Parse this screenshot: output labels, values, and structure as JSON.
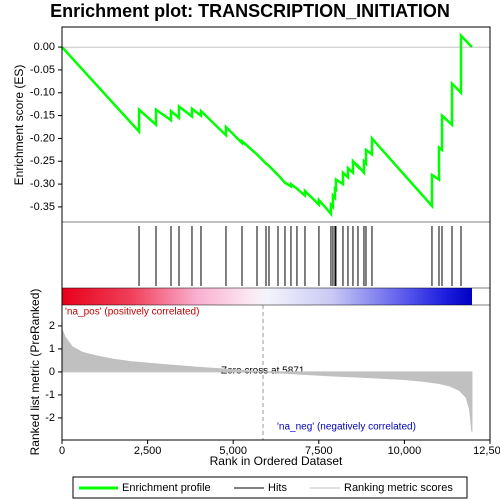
{
  "chart_data": [
    {
      "type": "line",
      "title": "Enrichment plot: TRANSCRIPTION_INITIATION",
      "ylabel": "Enrichment score (ES)",
      "x": [
        0,
        2250,
        2250,
        2745,
        2745,
        3183,
        3183,
        3417,
        3417,
        3796,
        3796,
        4059,
        4059,
        4789,
        4789,
        5257,
        5257,
        5695,
        5958,
        6045,
        6308,
        6512,
        6687,
        6687,
        6862,
        7096,
        7096,
        7504,
        7504,
        7855,
        7855,
        7913,
        7913,
        7972,
        7972,
        8001,
        8001,
        8206,
        8206,
        8352,
        8352,
        8498,
        8498,
        8644,
        8644,
        8819,
        8819,
        8878,
        8878,
        9053,
        9053,
        10805,
        10805,
        11010,
        11010,
        11098,
        11098,
        11390,
        11390,
        11653,
        11653,
        11972
      ],
      "series": [
        {
          "name": "Enrichment profile",
          "color": "#00ff00",
          "values": [
            0,
            -0.185,
            -0.137,
            -0.17,
            -0.137,
            -0.16,
            -0.14,
            -0.155,
            -0.13,
            -0.152,
            -0.135,
            -0.15,
            -0.14,
            -0.193,
            -0.175,
            -0.21,
            -0.206,
            -0.235,
            -0.255,
            -0.26,
            -0.28,
            -0.297,
            -0.305,
            -0.3,
            -0.31,
            -0.325,
            -0.315,
            -0.345,
            -0.335,
            -0.365,
            -0.345,
            -0.35,
            -0.325,
            -0.33,
            -0.31,
            -0.312,
            -0.29,
            -0.3,
            -0.275,
            -0.285,
            -0.265,
            -0.275,
            -0.25,
            -0.262,
            -0.26,
            -0.275,
            -0.25,
            -0.255,
            -0.225,
            -0.235,
            -0.2,
            -0.348,
            -0.28,
            -0.29,
            -0.22,
            -0.225,
            -0.15,
            -0.17,
            -0.08,
            -0.1,
            0.025,
            0.0
          ]
        }
      ],
      "xlim": [
        0,
        12500
      ],
      "ylim": [
        -0.383,
        0.044
      ],
      "yticks": [
        {
          "value": 0,
          "label": "0.00"
        },
        {
          "value": -0.05,
          "label": "-0.05"
        },
        {
          "value": -0.1,
          "label": "-0.10"
        },
        {
          "value": -0.15,
          "label": "-0.15"
        },
        {
          "value": -0.2,
          "label": "-0.20"
        },
        {
          "value": -0.25,
          "label": "-0.25"
        },
        {
          "value": -0.3,
          "label": "-0.30"
        },
        {
          "value": -0.35,
          "label": "-0.35"
        }
      ],
      "grid": false
    },
    {
      "type": "rug",
      "name": "Hits",
      "color": "#000000",
      "xlim": [
        0,
        12500
      ],
      "x": [
        2250,
        2745,
        3183,
        3417,
        3796,
        4059,
        4789,
        5257,
        5695,
        5958,
        6045,
        6308,
        6512,
        6687,
        6862,
        7096,
        7504,
        7855,
        7913,
        7972,
        8001,
        8206,
        8352,
        8498,
        8644,
        8819,
        8878,
        9053,
        10805,
        11010,
        11098,
        11390,
        11653
      ]
    },
    {
      "type": "area",
      "name": "Ranking metric scores",
      "color": "#c0c0c0",
      "ylabel": "Ranked list metric (PreRanked)",
      "xlabel": "Rank in Ordered Dataset",
      "x": [
        0,
        100,
        300,
        600,
        1000,
        1500,
        2000,
        3000,
        4000,
        5000,
        5871,
        7000,
        8000,
        9000,
        10000,
        10500,
        11000,
        11300,
        11600,
        11800,
        11900,
        11972
      ],
      "values": [
        1.85,
        1.5,
        1.1,
        0.85,
        0.7,
        0.55,
        0.45,
        0.32,
        0.2,
        0.1,
        0,
        -0.1,
        -0.18,
        -0.25,
        -0.33,
        -0.4,
        -0.5,
        -0.6,
        -0.8,
        -1.1,
        -1.6,
        -2.6
      ],
      "xlim": [
        0,
        12500
      ],
      "ylim": [
        -2.96,
        2.91
      ],
      "xticks": [
        0,
        {
          "value": 2500,
          "label": "2,500"
        },
        {
          "value": 5000,
          "label": "5,000"
        },
        {
          "value": 7500,
          "label": "7,500"
        },
        {
          "value": 10000,
          "label": "10,000"
        },
        {
          "value": 12500,
          "label": "12,500"
        }
      ],
      "yticks": [
        2,
        1,
        0,
        -1,
        -2
      ],
      "zero_cross": 5871,
      "annotations": [
        "'na_pos' (positively correlated)",
        "Zero cross at 5871",
        "'na_neg' (negatively correlated)"
      ]
    }
  ]
}
